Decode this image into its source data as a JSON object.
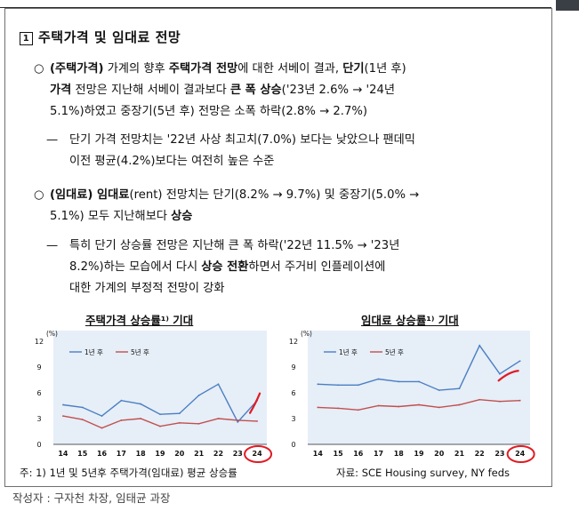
{
  "section": {
    "number": "1",
    "title": "주택가격 및 임대료 전망"
  },
  "bullets": [
    {
      "line1_mark": "○",
      "line1_a": "(주택가격)",
      "line1_b": " 가계의 향후 ",
      "line1_c": "주택가격 전망",
      "line1_d": "에 대한 서베이 결과, ",
      "line1_e": "단기",
      "line1_f": "(1년 후)",
      "line2_a": "가격",
      "line2_b": " 전망은 지난해 서베이 결과보다 ",
      "line2_c": "큰 폭 상승",
      "line2_d": "('23년 2.6% → '24년",
      "line3": "5.1%)하였고 중장기(5년 후) 전망은 소폭 하락(2.8% → 2.7%)"
    },
    {
      "line1_mark": "○",
      "line1_a": "(임대료) 임대료",
      "line1_b": "(rent) 전망치는 단기(8.2% → 9.7%) 및 중장기(5.0% →",
      "line2_a": "5.1%) 모두 지난해보다 ",
      "line2_b": "상승"
    }
  ],
  "subs": [
    {
      "dash": "—",
      "line1": "단기 가격 전망치는 '22년 사상 최고치(7.0%) 보다는 낮았으나 팬데믹",
      "line2": "이전 평균(4.2%)보다는 여전히 높은 수준"
    },
    {
      "dash": "—",
      "line1": "특히 단기 상승률 전망은 지난해 큰 폭 하락('22년 11.5% → '23년",
      "line2_a": "8.2%)하는 모습에서 다시 ",
      "line2_b": "상승 전환",
      "line2_c": "하면서 주거비 인플레이션에",
      "line3": "대한 가계의 부정적 전망이 강화"
    }
  ],
  "chart_data": [
    {
      "type": "line",
      "title": "주택가격 상승률¹⁾ 기대",
      "ylabel": "(%)",
      "ylim": [
        0,
        12
      ],
      "yticks": [
        0,
        3,
        6,
        9,
        12
      ],
      "categories": [
        "14",
        "15",
        "16",
        "17",
        "18",
        "19",
        "20",
        "21",
        "22",
        "23",
        "24"
      ],
      "series": [
        {
          "name": "1년 후",
          "color": "#4a7fc1",
          "values": [
            4.6,
            4.3,
            3.3,
            5.1,
            4.7,
            3.5,
            3.6,
            5.7,
            7.0,
            2.6,
            5.1
          ]
        },
        {
          "name": "5년 후",
          "color": "#c0504d",
          "values": [
            3.3,
            2.9,
            1.9,
            2.8,
            3.0,
            2.1,
            2.5,
            2.4,
            3.0,
            2.8,
            2.7
          ]
        }
      ],
      "legend": "top-left"
    },
    {
      "type": "line",
      "title": "임대료 상승률¹⁾ 기대",
      "ylabel": "(%)",
      "ylim": [
        0,
        12
      ],
      "yticks": [
        0,
        3,
        6,
        9,
        12
      ],
      "categories": [
        "14",
        "15",
        "16",
        "17",
        "18",
        "19",
        "20",
        "21",
        "22",
        "23",
        "24"
      ],
      "series": [
        {
          "name": "1년 후",
          "color": "#4a7fc1",
          "values": [
            7.0,
            6.9,
            6.9,
            7.6,
            7.3,
            7.3,
            6.3,
            6.5,
            11.5,
            8.2,
            9.7
          ]
        },
        {
          "name": "5년 후",
          "color": "#c0504d",
          "values": [
            4.3,
            4.2,
            4.0,
            4.5,
            4.4,
            4.6,
            4.3,
            4.6,
            5.2,
            5.0,
            5.1
          ]
        }
      ],
      "legend": "top-left"
    }
  ],
  "footnote": "주: 1) 1년 및 5년후 주택가격(임대료) 평균 상승률",
  "source": "자료: SCE Housing survey, NY feds",
  "author": "작성자 : 구자천 차장, 임태균 과장",
  "colors": {
    "annotation": "#e01b24",
    "chart_background": "#e6eef8"
  }
}
